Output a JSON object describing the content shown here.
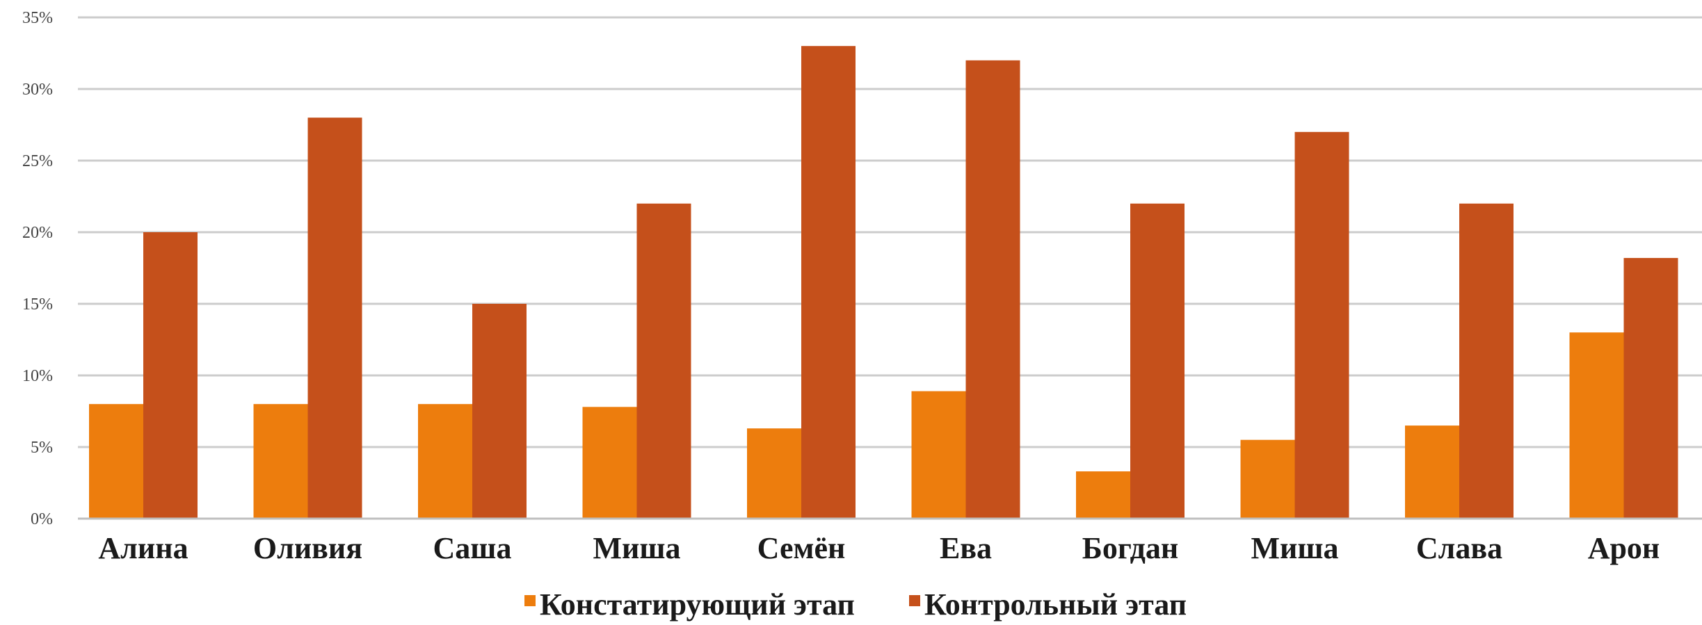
{
  "chart_data": {
    "type": "bar",
    "title": "",
    "xlabel": "",
    "ylabel": "",
    "categories": [
      "Алина",
      "Оливия",
      "Саша",
      "Миша",
      "Семён",
      "Ева",
      "Богдан",
      "Миша",
      "Слава",
      "Арон"
    ],
    "series": [
      {
        "name": "Констатирующий этап",
        "color": "#ed7d0d",
        "values": [
          8,
          8,
          8,
          7.8,
          6.3,
          8.9,
          3.3,
          5.5,
          6.5,
          13
        ]
      },
      {
        "name": "Контрольный этап",
        "color": "#c5501b",
        "values": [
          20,
          28,
          15,
          22,
          33,
          32,
          22,
          27,
          22,
          18.2
        ]
      }
    ],
    "ylim": [
      0,
      35
    ],
    "yticks": [
      "0%",
      "5%",
      "10%",
      "15%",
      "20%",
      "25%",
      "30%",
      "35%"
    ],
    "grid": true,
    "legend_position": "bottom"
  }
}
